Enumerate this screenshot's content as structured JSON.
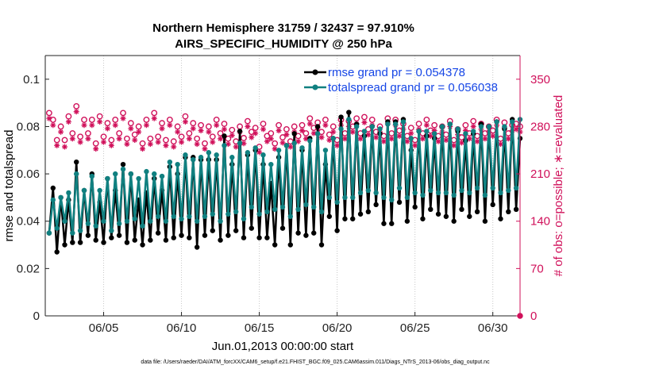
{
  "chart_data": {
    "type": "line",
    "title_line1": "Northern Hemisphere 31759 / 32437 = 97.910%",
    "title_line2": "AIRS_SPECIFIC_HUMIDITY @ 250 hPa",
    "xlabel": "Jun.01,2013 00:00:00 start",
    "ylabel": "rmse and totalspread",
    "y2label": "# of obs: o=possible; ∗=evaluated",
    "footnote": "data file: /Users/raeder/DAI/ATM_forcXX/CAM6_setup/f.e21.FHIST_BGC.f09_025.CAM6assim.011/Diags_NTrS_2013-06/obs_diag_output.nc",
    "x_range_days": [
      0.25,
      30.75
    ],
    "x_tick_days": [
      4,
      9,
      14,
      19,
      24,
      29
    ],
    "x_tick_labels": [
      "06/05",
      "06/10",
      "06/15",
      "06/20",
      "06/25",
      "06/30"
    ],
    "ylim": [
      0,
      0.11
    ],
    "y_ticks": [
      0,
      0.02,
      0.04,
      0.06,
      0.08,
      0.1
    ],
    "y_tick_labels": [
      "0",
      "0.02",
      "0.04",
      "0.06",
      "0.08",
      "0.1"
    ],
    "y2lim": [
      0,
      385
    ],
    "y2_ticks": [
      0,
      70,
      140,
      210,
      280,
      350
    ],
    "y2_tick_labels": [
      "0",
      "70",
      "140",
      "210",
      "280",
      "350"
    ],
    "colors": {
      "rmse": "#000000",
      "spread": "#108080",
      "obs": "#d0105a",
      "legend_text": "#1646e6"
    },
    "series": [
      {
        "name": "rmse grand pr = 0.054378",
        "key": "rmse",
        "values": [
          0.035,
          0.054,
          0.027,
          0.05,
          0.03,
          0.049,
          0.031,
          0.065,
          0.031,
          0.053,
          0.034,
          0.06,
          0.032,
          0.048,
          0.031,
          0.058,
          0.033,
          0.053,
          0.034,
          0.064,
          0.031,
          0.06,
          0.032,
          0.049,
          0.03,
          0.052,
          0.032,
          0.058,
          0.035,
          0.053,
          0.032,
          0.063,
          0.033,
          0.06,
          0.034,
          0.067,
          0.033,
          0.067,
          0.029,
          0.066,
          0.034,
          0.066,
          0.036,
          0.066,
          0.032,
          0.076,
          0.034,
          0.064,
          0.036,
          0.078,
          0.033,
          0.068,
          0.037,
          0.07,
          0.033,
          0.064,
          0.033,
          0.056,
          0.03,
          0.067,
          0.037,
          0.072,
          0.03,
          0.077,
          0.035,
          0.07,
          0.034,
          0.075,
          0.035,
          0.08,
          0.03,
          0.064,
          0.042,
          0.075,
          0.036,
          0.084,
          0.041,
          0.086,
          0.041,
          0.081,
          0.043,
          0.076,
          0.044,
          0.08,
          0.047,
          0.077,
          0.039,
          0.082,
          0.039,
          0.082,
          0.048,
          0.083,
          0.04,
          0.07,
          0.046,
          0.078,
          0.041,
          0.076,
          0.045,
          0.075,
          0.043,
          0.08,
          0.042,
          0.081,
          0.04,
          0.078,
          0.045,
          0.074,
          0.042,
          0.077,
          0.044,
          0.081,
          0.04,
          0.08,
          0.047,
          0.082,
          0.041,
          0.079,
          0.044,
          0.083,
          0.045,
          0.075
        ]
      },
      {
        "name": "totalspread grand pr = 0.056038",
        "key": "spread",
        "values": [
          0.035,
          0.049,
          0.037,
          0.05,
          0.04,
          0.052,
          0.035,
          0.06,
          0.036,
          0.053,
          0.039,
          0.059,
          0.038,
          0.053,
          0.04,
          0.058,
          0.036,
          0.06,
          0.039,
          0.062,
          0.04,
          0.06,
          0.041,
          0.058,
          0.038,
          0.061,
          0.04,
          0.06,
          0.042,
          0.059,
          0.04,
          0.065,
          0.042,
          0.064,
          0.041,
          0.068,
          0.042,
          0.066,
          0.04,
          0.067,
          0.042,
          0.069,
          0.043,
          0.068,
          0.04,
          0.072,
          0.043,
          0.067,
          0.044,
          0.073,
          0.041,
          0.069,
          0.046,
          0.071,
          0.043,
          0.068,
          0.044,
          0.064,
          0.045,
          0.07,
          0.046,
          0.072,
          0.042,
          0.073,
          0.045,
          0.071,
          0.047,
          0.074,
          0.046,
          0.077,
          0.044,
          0.07,
          0.05,
          0.075,
          0.048,
          0.079,
          0.05,
          0.083,
          0.05,
          0.08,
          0.052,
          0.078,
          0.053,
          0.08,
          0.052,
          0.079,
          0.05,
          0.081,
          0.049,
          0.081,
          0.054,
          0.082,
          0.05,
          0.075,
          0.052,
          0.078,
          0.051,
          0.078,
          0.053,
          0.077,
          0.052,
          0.08,
          0.052,
          0.081,
          0.051,
          0.079,
          0.053,
          0.077,
          0.052,
          0.078,
          0.054,
          0.08,
          0.051,
          0.08,
          0.054,
          0.082,
          0.052,
          0.08,
          0.053,
          0.082,
          0.054,
          0.083
        ]
      },
      {
        "name": "# of obs possible",
        "key": "possible",
        "values": [
          300,
          290,
          260,
          280,
          260,
          295,
          270,
          310,
          265,
          290,
          270,
          290,
          255,
          295,
          265,
          285,
          260,
          290,
          270,
          300,
          262,
          285,
          268,
          280,
          255,
          290,
          262,
          300,
          265,
          285,
          260,
          290,
          258,
          280,
          265,
          295,
          270,
          285,
          262,
          282,
          255,
          280,
          265,
          290,
          270,
          284,
          262,
          275,
          258,
          280,
          263,
          288,
          272,
          278,
          250,
          284,
          266,
          270,
          255,
          282,
          264,
          276,
          258,
          280,
          266,
          282,
          270,
          292,
          278,
          286,
          272,
          290,
          268,
          280,
          260,
          290,
          270,
          288,
          280,
          292,
          270,
          294,
          276,
          290,
          272,
          280,
          266,
          292,
          270,
          290,
          274,
          284,
          266,
          278,
          260,
          284,
          270,
          290,
          274,
          282,
          266,
          280,
          268,
          288,
          260,
          276,
          264,
          282,
          270,
          288,
          266,
          284,
          270,
          280,
          274,
          290,
          262,
          286,
          270,
          282,
          284,
          280
        ]
      },
      {
        "name": "# of obs evaluated",
        "key": "evaluated",
        "values": [
          292,
          282,
          252,
          272,
          250,
          287,
          262,
          302,
          257,
          282,
          262,
          282,
          247,
          287,
          257,
          277,
          252,
          282,
          262,
          292,
          254,
          277,
          260,
          272,
          247,
          282,
          254,
          292,
          257,
          277,
          252,
          282,
          250,
          272,
          257,
          287,
          262,
          277,
          254,
          274,
          247,
          272,
          257,
          282,
          262,
          276,
          254,
          267,
          250,
          272,
          255,
          280,
          264,
          270,
          242,
          276,
          258,
          262,
          247,
          274,
          256,
          268,
          250,
          272,
          258,
          274,
          262,
          284,
          270,
          278,
          264,
          282,
          260,
          272,
          252,
          282,
          262,
          280,
          272,
          284,
          262,
          286,
          268,
          282,
          264,
          272,
          258,
          284,
          262,
          282,
          266,
          276,
          258,
          270,
          252,
          276,
          262,
          282,
          266,
          274,
          258,
          272,
          260,
          280,
          252,
          268,
          256,
          274,
          262,
          280,
          258,
          276,
          262,
          272,
          266,
          282,
          254,
          278,
          262,
          274,
          276,
          272
        ]
      }
    ]
  }
}
